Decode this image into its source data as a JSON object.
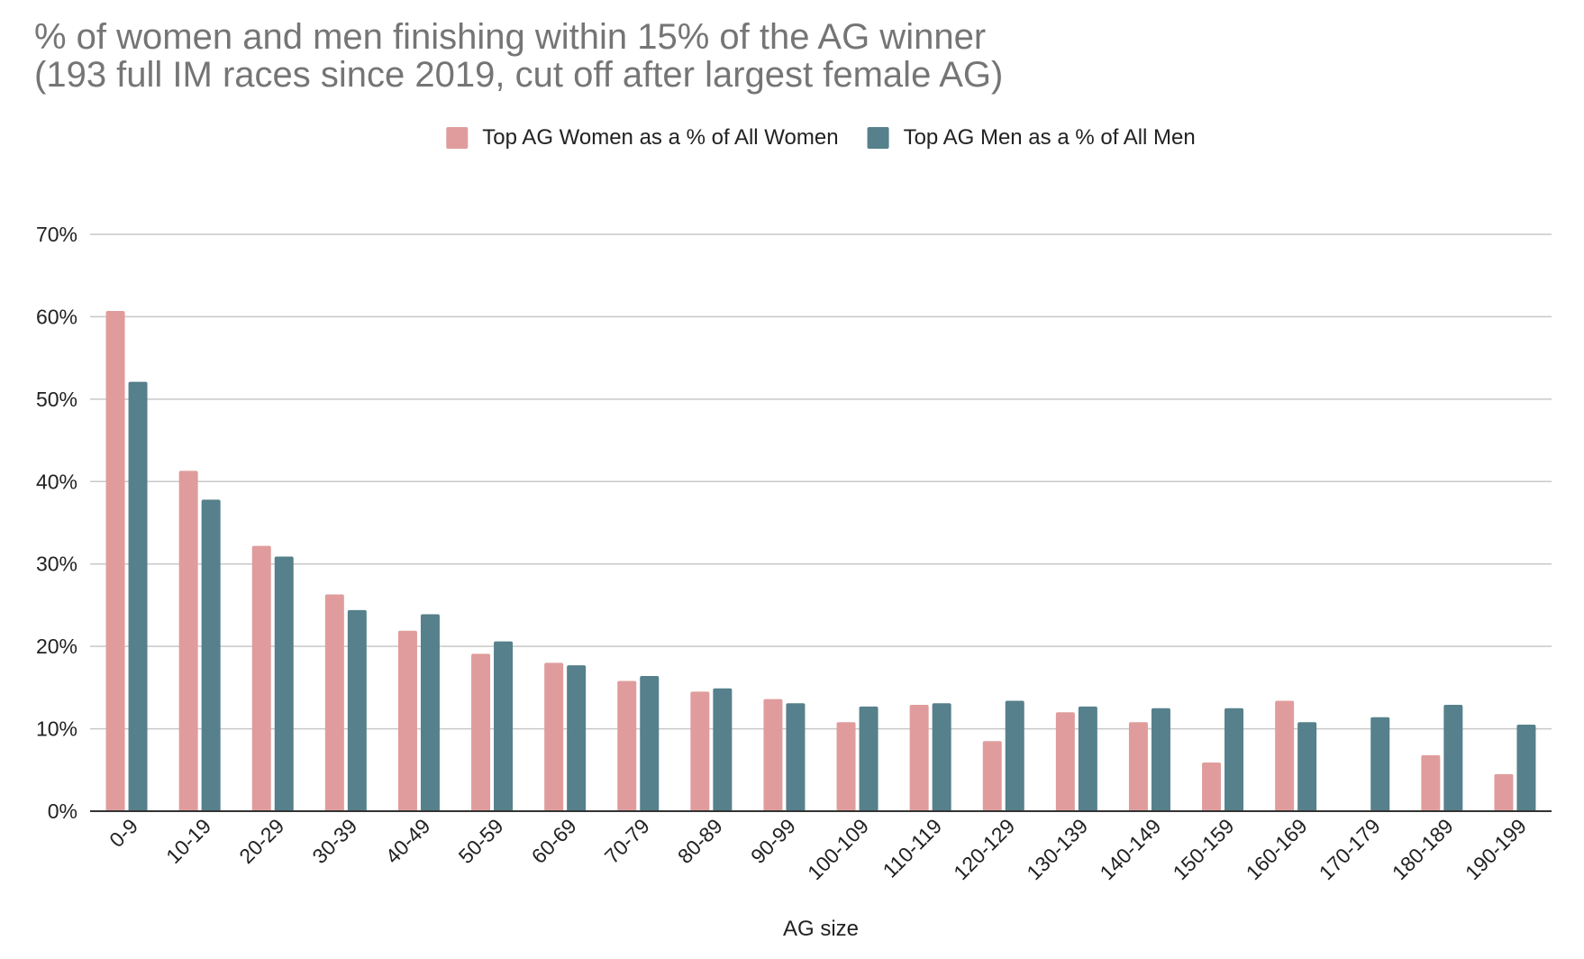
{
  "chart_data": {
    "type": "bar",
    "title_lines": [
      "% of women and men finishing within 15% of the AG winner",
      "(193 full IM races since 2019, cut off after largest female AG)"
    ],
    "xlabel": "AG size",
    "ylabel": "",
    "ylim": [
      0,
      70
    ],
    "yticks": [
      0,
      10,
      20,
      30,
      40,
      50,
      60,
      70
    ],
    "ytick_labels": [
      "0%",
      "10%",
      "20%",
      "30%",
      "40%",
      "50%",
      "60%",
      "70%"
    ],
    "grid": true,
    "legend_position": "top-center",
    "categories": [
      "0-9",
      "10-19",
      "20-29",
      "30-39",
      "40-49",
      "50-59",
      "60-69",
      "70-79",
      "80-89",
      "90-99",
      "100-109",
      "110-119",
      "120-129",
      "130-139",
      "140-149",
      "150-159",
      "160-169",
      "170-179",
      "180-189",
      "190-199"
    ],
    "series": [
      {
        "name": "Top AG Women as a % of All Women",
        "color": "#e09c9c",
        "values": [
          60.7,
          41.3,
          32.2,
          26.3,
          21.9,
          19.1,
          18.0,
          15.8,
          14.5,
          13.6,
          10.8,
          12.9,
          8.5,
          12.0,
          10.8,
          5.9,
          13.4,
          0,
          6.8,
          4.5
        ]
      },
      {
        "name": "Top AG Men as a % of All Men",
        "color": "#56808b",
        "values": [
          52.1,
          37.8,
          30.9,
          24.4,
          23.9,
          20.6,
          17.7,
          16.4,
          14.9,
          13.1,
          12.7,
          13.1,
          13.4,
          12.7,
          12.5,
          12.5,
          10.8,
          11.4,
          12.9,
          10.5
        ]
      }
    ]
  }
}
